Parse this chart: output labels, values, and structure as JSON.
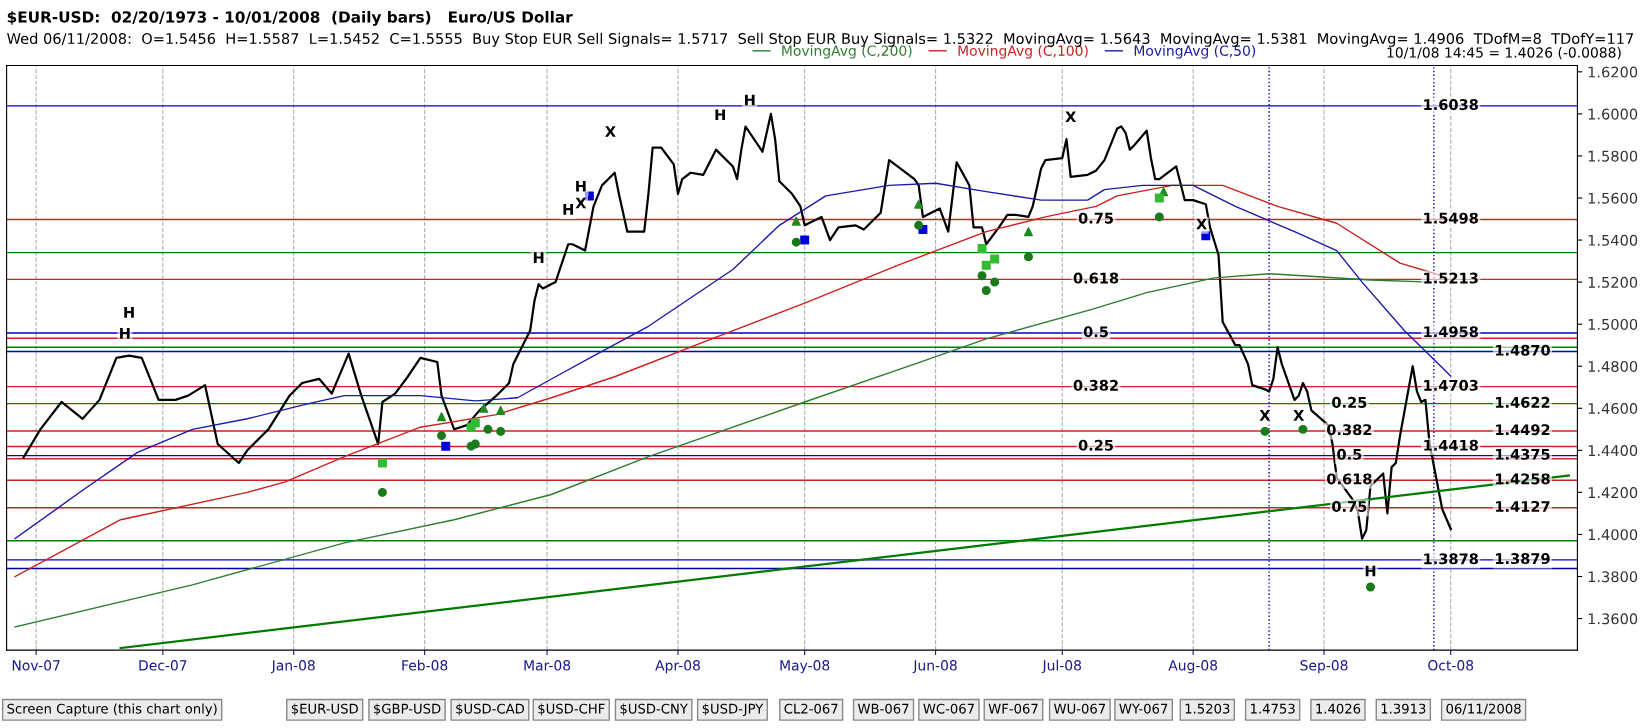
{
  "chart_data": {
    "type": "line",
    "title": "$EUR-USD:  02/20/1973 - 10/01/2008  (Daily bars)   Euro/US Dollar",
    "subtitle": "Wed 06/11/2008:  O=1.5456  H=1.5587  L=1.5452  C=1.5555  Buy Stop EUR Sell Signals= 1.5717  Sell Stop EUR Buy Signals= 1.5322  MovingAvg= 1.5643  MovingAvg= 1.5381  MovingAvg= 1.4906  TDofM=8  TDofY=117",
    "xlim": [
      "2007-10-25",
      "2008-10-31"
    ],
    "ylim": [
      1.345,
      1.623
    ],
    "xticks": [
      {
        "value": "2007-11-01",
        "label": "Nov-07"
      },
      {
        "value": "2007-12-01",
        "label": "Dec-07"
      },
      {
        "value": "2008-01-01",
        "label": "Jan-08"
      },
      {
        "value": "2008-02-01",
        "label": "Feb-08"
      },
      {
        "value": "2008-03-01",
        "label": "Mar-08"
      },
      {
        "value": "2008-04-01",
        "label": "Apr-08"
      },
      {
        "value": "2008-05-01",
        "label": "May-08"
      },
      {
        "value": "2008-06-01",
        "label": "Jun-08"
      },
      {
        "value": "2008-07-01",
        "label": "Jul-08"
      },
      {
        "value": "2008-08-01",
        "label": "Aug-08"
      },
      {
        "value": "2008-09-01",
        "label": "Sep-08"
      },
      {
        "value": "2008-10-01",
        "label": "Oct-08"
      }
    ],
    "yticks": [
      {
        "value": 1.36,
        "label": "1.3600"
      },
      {
        "value": 1.38,
        "label": "1.3800"
      },
      {
        "value": 1.4,
        "label": "1.4000"
      },
      {
        "value": 1.42,
        "label": "1.4200"
      },
      {
        "value": 1.44,
        "label": "1.4400"
      },
      {
        "value": 1.46,
        "label": "1.4600"
      },
      {
        "value": 1.48,
        "label": "1.4800"
      },
      {
        "value": 1.5,
        "label": "1.5000"
      },
      {
        "value": 1.52,
        "label": "1.5200"
      },
      {
        "value": 1.54,
        "label": "1.5400"
      },
      {
        "value": 1.56,
        "label": "1.5600"
      },
      {
        "value": 1.58,
        "label": "1.5800"
      },
      {
        "value": 1.6,
        "label": "1.6000"
      },
      {
        "value": 1.62,
        "label": "1.6200"
      }
    ],
    "grid": "x",
    "legend": "top right",
    "series": [
      {
        "color": "#000000",
        "x": [
          "2007-10-29",
          "2007-11-02",
          "2007-11-07",
          "2007-11-12",
          "2007-11-16",
          "2007-11-20",
          "2007-11-23",
          "2007-11-26",
          "2007-11-30",
          "2007-12-04",
          "2007-12-07",
          "2007-12-11",
          "2007-12-14",
          "2007-12-19",
          "2007-12-21",
          "2007-12-26",
          "2007-12-31",
          "2008-01-03",
          "2008-01-07",
          "2008-01-10",
          "2008-01-14",
          "2008-01-17",
          "2008-01-21",
          "2008-01-22",
          "2008-01-25",
          "2008-01-28",
          "2008-01-31",
          "2008-02-04",
          "2008-02-05",
          "2008-02-08",
          "2008-02-11",
          "2008-02-14",
          "2008-02-18",
          "2008-02-21",
          "2008-02-22",
          "2008-02-26",
          "2008-02-27",
          "2008-02-28",
          "2008-02-29",
          "2008-03-03",
          "2008-03-04",
          "2008-03-06",
          "2008-03-07",
          "2008-03-10",
          "2008-03-12",
          "2008-03-14",
          "2008-03-17",
          "2008-03-18",
          "2008-03-20",
          "2008-03-24",
          "2008-03-25",
          "2008-03-26",
          "2008-03-28",
          "2008-03-31",
          "2008-04-01",
          "2008-04-02",
          "2008-04-04",
          "2008-04-07",
          "2008-04-10",
          "2008-04-14",
          "2008-04-15",
          "2008-04-16",
          "2008-04-17",
          "2008-04-21",
          "2008-04-22",
          "2008-04-23",
          "2008-04-24",
          "2008-04-25",
          "2008-04-28",
          "2008-04-30",
          "2008-05-01",
          "2008-05-05",
          "2008-05-07",
          "2008-05-09",
          "2008-05-13",
          "2008-05-15",
          "2008-05-19",
          "2008-05-21",
          "2008-05-23",
          "2008-05-27",
          "2008-05-28",
          "2008-05-29",
          "2008-06-02",
          "2008-06-04",
          "2008-06-06",
          "2008-06-09",
          "2008-06-10",
          "2008-06-12",
          "2008-06-13",
          "2008-06-16",
          "2008-06-18",
          "2008-06-20",
          "2008-06-23",
          "2008-06-24",
          "2008-06-26",
          "2008-06-27",
          "2008-07-01",
          "2008-07-02",
          "2008-07-03",
          "2008-07-07",
          "2008-07-09",
          "2008-07-11",
          "2008-07-14",
          "2008-07-15",
          "2008-07-16",
          "2008-07-17",
          "2008-07-18",
          "2008-07-21",
          "2008-07-22",
          "2008-07-23",
          "2008-07-24",
          "2008-07-28",
          "2008-07-30",
          "2008-08-01",
          "2008-08-04",
          "2008-08-05",
          "2008-08-07",
          "2008-08-08",
          "2008-08-11",
          "2008-08-12",
          "2008-08-14",
          "2008-08-15",
          "2008-08-18",
          "2008-08-19",
          "2008-08-20",
          "2008-08-21",
          "2008-08-22",
          "2008-08-25",
          "2008-08-26",
          "2008-08-27",
          "2008-08-28",
          "2008-08-29",
          "2008-09-02",
          "2008-09-03",
          "2008-09-04",
          "2008-09-08",
          "2008-09-09",
          "2008-09-10",
          "2008-09-11",
          "2008-09-12",
          "2008-09-15",
          "2008-09-16",
          "2008-09-17",
          "2008-09-18",
          "2008-09-19",
          "2008-09-22",
          "2008-09-23",
          "2008-09-24",
          "2008-09-25",
          "2008-09-26",
          "2008-09-29",
          "2008-10-01"
        ],
        "values": [
          1.4366,
          1.45,
          1.463,
          1.455,
          1.464,
          1.484,
          1.485,
          1.484,
          1.464,
          1.464,
          1.466,
          1.471,
          1.443,
          1.434,
          1.44,
          1.45,
          1.466,
          1.472,
          1.474,
          1.467,
          1.486,
          1.466,
          1.443,
          1.463,
          1.467,
          1.475,
          1.484,
          1.482,
          1.466,
          1.45,
          1.452,
          1.459,
          1.466,
          1.472,
          1.481,
          1.497,
          1.511,
          1.519,
          1.517,
          1.52,
          1.526,
          1.538,
          1.538,
          1.535,
          1.556,
          1.566,
          1.572,
          1.562,
          1.544,
          1.544,
          1.562,
          1.584,
          1.584,
          1.576,
          1.562,
          1.569,
          1.572,
          1.571,
          1.583,
          1.575,
          1.569,
          1.583,
          1.594,
          1.582,
          1.591,
          1.6,
          1.588,
          1.568,
          1.562,
          1.556,
          1.547,
          1.551,
          1.54,
          1.546,
          1.547,
          1.545,
          1.553,
          1.578,
          1.575,
          1.569,
          1.566,
          1.551,
          1.555,
          1.544,
          1.577,
          1.566,
          1.546,
          1.546,
          1.538,
          1.546,
          1.552,
          1.552,
          1.551,
          1.556,
          1.574,
          1.578,
          1.579,
          1.588,
          1.57,
          1.571,
          1.573,
          1.578,
          1.593,
          1.594,
          1.591,
          1.583,
          1.585,
          1.592,
          1.579,
          1.569,
          1.569,
          1.575,
          1.559,
          1.559,
          1.557,
          1.546,
          1.533,
          1.501,
          1.49,
          1.49,
          1.481,
          1.471,
          1.469,
          1.468,
          1.474,
          1.489,
          1.481,
          1.464,
          1.466,
          1.472,
          1.468,
          1.459,
          1.452,
          1.443,
          1.427,
          1.416,
          1.411,
          1.398,
          1.402,
          1.423,
          1.429,
          1.41,
          1.432,
          1.434,
          1.447,
          1.48,
          1.468,
          1.463,
          1.464,
          1.443,
          1.412,
          1.4026
        ]
      },
      {
        "name": "MovingAvg (C,200)",
        "color": "#2e7d2e",
        "x": [
          "2007-10-27",
          "2007-12-08",
          "2008-01-13",
          "2008-02-08",
          "2008-03-02",
          "2008-03-25",
          "2008-05-01",
          "2008-05-27",
          "2008-06-13",
          "2008-07-08",
          "2008-07-21",
          "2008-08-06",
          "2008-08-19",
          "2008-09-12",
          "2008-09-26"
        ],
        "values": [
          1.356,
          1.376,
          1.396,
          1.407,
          1.419,
          1.437,
          1.463,
          1.481,
          1.493,
          1.507,
          1.515,
          1.522,
          1.524,
          1.521,
          1.52
        ]
      },
      {
        "name": "MovingAvg (C,100)",
        "color": "#cc1f1f",
        "x": [
          "2007-10-27",
          "2007-11-21",
          "2007-12-21",
          "2007-12-30",
          "2008-01-13",
          "2008-01-31",
          "2008-02-18",
          "2008-03-02",
          "2008-03-17",
          "2008-04-09",
          "2008-05-01",
          "2008-05-23",
          "2008-06-13",
          "2008-06-27",
          "2008-07-09",
          "2008-07-14",
          "2008-07-27",
          "2008-08-08",
          "2008-08-21",
          "2008-09-04",
          "2008-09-19",
          "2008-09-29"
        ],
        "values": [
          1.38,
          1.407,
          1.42,
          1.425,
          1.437,
          1.451,
          1.457,
          1.465,
          1.475,
          1.493,
          1.51,
          1.528,
          1.544,
          1.551,
          1.556,
          1.561,
          1.566,
          1.566,
          1.556,
          1.548,
          1.529,
          1.523
        ]
      },
      {
        "name": "MovingAvg (C,50)",
        "color": "#1a1aa6",
        "x": [
          "2007-10-27",
          "2007-11-12",
          "2007-11-25",
          "2007-12-08",
          "2007-12-21",
          "2008-01-04",
          "2008-01-13",
          "2008-01-31",
          "2008-02-13",
          "2008-02-23",
          "2008-03-03",
          "2008-03-13",
          "2008-03-25",
          "2008-04-14",
          "2008-04-25",
          "2008-05-06",
          "2008-05-21",
          "2008-06-01",
          "2008-06-13",
          "2008-06-26",
          "2008-07-07",
          "2008-07-11",
          "2008-07-20",
          "2008-08-01",
          "2008-08-11",
          "2008-08-25",
          "2008-09-04",
          "2008-09-10",
          "2008-09-20",
          "2008-10-01"
        ],
        "values": [
          1.398,
          1.421,
          1.439,
          1.45,
          1.455,
          1.462,
          1.466,
          1.466,
          1.4635,
          1.465,
          1.475,
          1.486,
          1.499,
          1.526,
          1.547,
          1.561,
          1.566,
          1.567,
          1.563,
          1.559,
          1.559,
          1.564,
          1.566,
          1.566,
          1.556,
          1.544,
          1.535,
          1.52,
          1.497,
          1.4753
        ]
      },
      {
        "color": "#007a00",
        "x": [
          "2007-11-21",
          "2008-10-29"
        ],
        "values": [
          1.346,
          1.428
        ]
      },
      {
        "type": "scatter",
        "marker": "triangle",
        "color": "#1f8a1f",
        "x": [
          "2008-02-05",
          "2008-02-15",
          "2008-02-19",
          "2008-04-29",
          "2008-05-28",
          "2008-06-23",
          "2008-07-25"
        ],
        "values": [
          1.456,
          1.46,
          1.459,
          1.549,
          1.557,
          1.544,
          1.563
        ]
      },
      {
        "type": "scatter",
        "marker": "square",
        "color": "#0000dd",
        "x": [
          "2008-02-06",
          "2008-03-11",
          "2008-05-01",
          "2008-05-29",
          "2008-08-04"
        ],
        "values": [
          1.442,
          1.561,
          1.54,
          1.545,
          1.542
        ]
      },
      {
        "type": "scatter",
        "marker": "square",
        "color": "#33bb33",
        "x": [
          "2008-01-22",
          "2008-02-12",
          "2008-02-13",
          "2008-06-12",
          "2008-06-13",
          "2008-06-15",
          "2008-07-24"
        ],
        "values": [
          1.434,
          1.451,
          1.453,
          1.536,
          1.528,
          1.531,
          1.56
        ]
      },
      {
        "type": "scatter",
        "marker": "circle",
        "color": "#1a7a1a",
        "x": [
          "2008-01-22",
          "2008-02-05",
          "2008-02-12",
          "2008-02-13",
          "2008-02-16",
          "2008-02-19",
          "2008-04-29",
          "2008-05-28",
          "2008-06-12",
          "2008-06-13",
          "2008-06-15",
          "2008-06-23",
          "2008-07-24",
          "2008-08-18",
          "2008-08-27",
          "2008-09-12"
        ],
        "values": [
          1.42,
          1.447,
          1.442,
          1.443,
          1.45,
          1.449,
          1.539,
          1.547,
          1.523,
          1.516,
          1.52,
          1.532,
          1.551,
          1.449,
          1.45,
          1.375
        ]
      }
    ],
    "ref_lines": [
      {
        "axis": "y",
        "value": 1.6038,
        "color": "#0000cc"
      },
      {
        "axis": "y",
        "value": 1.4933,
        "color": "#cc2222"
      },
      {
        "axis": "y",
        "value": 1.436,
        "color": "#cc2222"
      },
      {
        "axis": "y",
        "value": 1.3838,
        "color": "#0000aa"
      },
      {
        "axis": "y",
        "value": 1.534,
        "color": "#008000"
      },
      {
        "axis": "y",
        "value": 1.489,
        "color": "#008000"
      },
      {
        "axis": "y",
        "value": 1.4622,
        "color": "#008000"
      },
      {
        "axis": "y",
        "value": 1.397,
        "color": "#008000"
      },
      {
        "axis": "y",
        "value": 1.5498,
        "color": "#cc2222"
      },
      {
        "axis": "y",
        "value": 1.5213,
        "color": "#cc2222"
      },
      {
        "axis": "y",
        "value": 1.4958,
        "color": "#0000cc"
      },
      {
        "axis": "y",
        "value": 1.4703,
        "color": "#cc2222"
      },
      {
        "axis": "y",
        "value": 1.4418,
        "color": "#cc2222"
      },
      {
        "axis": "y",
        "value": 1.4492,
        "color": "#cc2222"
      },
      {
        "axis": "y",
        "value": 1.4375,
        "color": "#0000cc"
      },
      {
        "axis": "y",
        "value": 1.4258,
        "color": "#cc2222"
      },
      {
        "axis": "y",
        "value": 1.4127,
        "color": "#cc2222"
      },
      {
        "axis": "y",
        "value": 1.3879,
        "color": "#0000cc"
      },
      {
        "axis": "y",
        "value": 1.487,
        "color": "#0000cc"
      },
      {
        "axis": "x",
        "value": "2008-08-19",
        "color": "#0000aa",
        "line_style": "dotted"
      },
      {
        "axis": "x",
        "value": "2008-09-27",
        "color": "#0000aa",
        "line_style": "dotted"
      }
    ],
    "annotations": [
      "10/1/08 14:45 = 1.4026 (-0.0088)",
      "Screen Capture (this chart only)",
      "$EUR-USD",
      "$GBP-USD",
      "$USD-CAD",
      "$USD-CHF",
      "$USD-CNY",
      "$USD-JPY",
      "CL2-067",
      "WB-067",
      "WC-067",
      "WF-067",
      "WU-067",
      "WY-067",
      {
        "text": "1.6038",
        "x": "2008-10-01",
        "y": 1.6038
      },
      {
        "text": "0.75",
        "x": "2008-07-09",
        "y": 1.5498
      },
      {
        "text": "1.5498",
        "x": "2008-10-01",
        "y": 1.5498
      },
      {
        "text": "0.618",
        "x": "2008-07-09",
        "y": 1.5213
      },
      {
        "text": "1.5213",
        "x": "2008-10-01",
        "y": 1.5213
      },
      {
        "text": "0.5",
        "x": "2008-07-09",
        "y": 1.4958
      },
      {
        "text": "1.4958",
        "x": "2008-10-01",
        "y": 1.4958
      },
      {
        "text": "0.382",
        "x": "2008-07-09",
        "y": 1.4703
      },
      {
        "text": "1.4703",
        "x": "2008-10-01",
        "y": 1.4703
      },
      {
        "text": "0.25",
        "x": "2008-07-09",
        "y": 1.4418
      },
      {
        "text": "1.4418",
        "x": "2008-10-01",
        "y": 1.4418
      },
      {
        "text": "1.4870",
        "x": "2008-10-18",
        "y": 1.487
      },
      {
        "text": "0.25",
        "x": "2008-09-07",
        "y": 1.4622
      },
      {
        "text": "1.4622",
        "x": "2008-10-18",
        "y": 1.4622
      },
      {
        "text": "0.382",
        "x": "2008-09-07",
        "y": 1.4492
      },
      {
        "text": "1.4492",
        "x": "2008-10-18",
        "y": 1.4492
      },
      {
        "text": "0.5",
        "x": "2008-09-07",
        "y": 1.4375
      },
      {
        "text": "1.4375",
        "x": "2008-10-18",
        "y": 1.4375
      },
      {
        "text": "0.618",
        "x": "2008-09-07",
        "y": 1.4258
      },
      {
        "text": "1.4258",
        "x": "2008-10-18",
        "y": 1.4258
      },
      {
        "text": "0.75",
        "x": "2008-09-07",
        "y": 1.4127
      },
      {
        "text": "1.4127",
        "x": "2008-10-18",
        "y": 1.4127
      },
      {
        "text": "1.3878",
        "x": "2008-10-01",
        "y": 1.3878
      },
      {
        "text": "1.3879",
        "x": "2008-10-18",
        "y": 1.3879
      },
      "1.5203",
      "1.4753",
      "1.4026",
      "1.3913",
      "06/11/2008",
      {
        "text": "H",
        "x": "2007-11-23",
        "y": 1.505
      },
      {
        "text": "H",
        "x": "2007-11-22",
        "y": 1.495
      },
      {
        "text": "H",
        "x": "2008-02-28",
        "y": 1.531
      },
      {
        "text": "X",
        "x": "2008-03-16",
        "y": 1.591
      },
      {
        "text": "H",
        "x": "2008-03-09",
        "y": 1.565
      },
      {
        "text": "X",
        "x": "2008-03-09",
        "y": 1.557
      },
      {
        "text": "H",
        "x": "2008-03-06",
        "y": 1.554
      },
      {
        "text": "H",
        "x": "2008-04-11",
        "y": 1.599
      },
      {
        "text": "H",
        "x": "2008-04-18",
        "y": 1.606
      },
      {
        "text": "X",
        "x": "2008-07-03",
        "y": 1.598
      },
      {
        "text": "X",
        "x": "2008-08-03",
        "y": 1.547
      },
      {
        "text": "X",
        "x": "2008-08-18",
        "y": 1.456
      },
      {
        "text": "X",
        "x": "2008-08-26",
        "y": 1.456
      },
      {
        "text": "H",
        "x": "2008-09-12",
        "y": 1.382
      }
    ]
  }
}
